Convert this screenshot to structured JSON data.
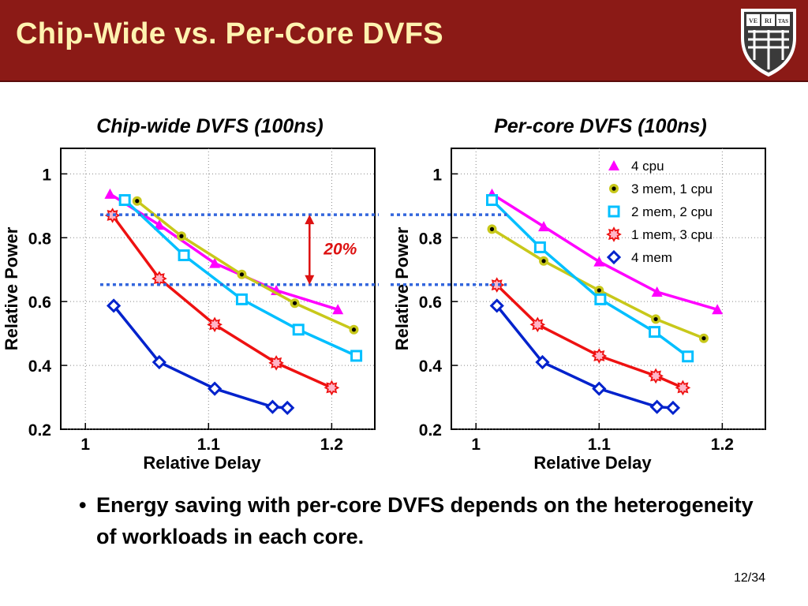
{
  "slide": {
    "title": "Chip-Wide vs. Per-Core DVFS",
    "bullet": "Energy saving with per-core DVFS depends on the heterogeneity of workloads in each core.",
    "page": "12/34",
    "logo_text": [
      "VE",
      "RI",
      "TAS"
    ],
    "header_color": "#8b1a16",
    "title_color": "#fff3b0"
  },
  "chart_data": [
    {
      "type": "line",
      "title": "Chip-wide DVFS (100ns)",
      "xlabel": "Relative Delay",
      "ylabel": "Relative Power",
      "xlim": [
        0.98,
        1.235
      ],
      "ylim": [
        0.2,
        1.08
      ],
      "xticks": [
        "1",
        "1.1",
        "1.2"
      ],
      "xtick_values": [
        1.0,
        1.1,
        1.2
      ],
      "yticks": [
        "0.2",
        "0.4",
        "0.6",
        "0.8",
        "1"
      ],
      "ytick_values": [
        0.2,
        0.4,
        0.6,
        0.8,
        1.0
      ],
      "grid": true,
      "legend": false,
      "annotation": {
        "label": "20%",
        "y_top": 0.872,
        "y_bottom": 0.653,
        "arrow_x": 1.182,
        "dash_x_end": 1.36
      },
      "series": [
        {
          "name": "4 cpu",
          "color": "#ff00ff",
          "marker": "triangle",
          "x": [
            1.02,
            1.06,
            1.105,
            1.155,
            1.205
          ],
          "y": [
            0.937,
            0.84,
            0.72,
            0.635,
            0.575
          ]
        },
        {
          "name": "3 mem, 1 cpu",
          "color": "#c8c81a",
          "marker": "circle",
          "x": [
            1.042,
            1.078,
            1.127,
            1.17,
            1.218
          ],
          "y": [
            0.915,
            0.805,
            0.685,
            0.595,
            0.512
          ]
        },
        {
          "name": "2 mem, 2 cpu",
          "color": "#00bfff",
          "marker": "square",
          "x": [
            1.032,
            1.08,
            1.127,
            1.173,
            1.22
          ],
          "y": [
            0.918,
            0.745,
            0.607,
            0.512,
            0.43
          ]
        },
        {
          "name": "1 mem, 3 cpu",
          "color": "#ee1111",
          "marker": "star",
          "x": [
            1.022,
            1.06,
            1.105,
            1.155,
            1.2
          ],
          "y": [
            0.87,
            0.672,
            0.528,
            0.408,
            0.33
          ]
        },
        {
          "name": "4 mem",
          "color": "#0022cc",
          "marker": "diamond",
          "x": [
            1.023,
            1.06,
            1.105,
            1.152,
            1.164
          ],
          "y": [
            0.587,
            0.41,
            0.327,
            0.27,
            0.267
          ]
        }
      ]
    },
    {
      "type": "line",
      "title": "Per-core DVFS (100ns)",
      "xlabel": "Relative Delay",
      "ylabel": "Relative Power",
      "xlim": [
        0.98,
        1.235
      ],
      "ylim": [
        0.2,
        1.08
      ],
      "xticks": [
        "1",
        "1.1",
        "1.2"
      ],
      "xtick_values": [
        1.0,
        1.1,
        1.2
      ],
      "yticks": [
        "0.2",
        "0.4",
        "0.6",
        "0.8",
        "1"
      ],
      "ytick_values": [
        0.2,
        0.4,
        0.6,
        0.8,
        1.0
      ],
      "grid": true,
      "legend": "top-right",
      "dash_lines": [
        {
          "y": 0.872,
          "x_end": 1.025
        },
        {
          "y": 0.653,
          "x_end": 1.025
        }
      ],
      "series": [
        {
          "name": "4 cpu",
          "color": "#ff00ff",
          "marker": "triangle",
          "x": [
            1.013,
            1.055,
            1.1,
            1.147,
            1.196
          ],
          "y": [
            0.937,
            0.835,
            0.725,
            0.63,
            0.575
          ]
        },
        {
          "name": "3 mem, 1 cpu",
          "color": "#c8c81a",
          "marker": "circle",
          "x": [
            1.013,
            1.055,
            1.1,
            1.146,
            1.185
          ],
          "y": [
            0.827,
            0.727,
            0.635,
            0.545,
            0.485
          ]
        },
        {
          "name": "2 mem, 2 cpu",
          "color": "#00bfff",
          "marker": "square",
          "x": [
            1.013,
            1.052,
            1.101,
            1.145,
            1.172
          ],
          "y": [
            0.918,
            0.77,
            0.607,
            0.505,
            0.428
          ]
        },
        {
          "name": "1 mem, 3 cpu",
          "color": "#ee1111",
          "marker": "star",
          "x": [
            1.017,
            1.05,
            1.1,
            1.146,
            1.168
          ],
          "y": [
            0.652,
            0.528,
            0.43,
            0.367,
            0.33
          ]
        },
        {
          "name": "4 mem",
          "color": "#0022cc",
          "marker": "diamond",
          "x": [
            1.017,
            1.054,
            1.1,
            1.147,
            1.16
          ],
          "y": [
            0.587,
            0.41,
            0.327,
            0.27,
            0.267
          ]
        }
      ]
    }
  ]
}
